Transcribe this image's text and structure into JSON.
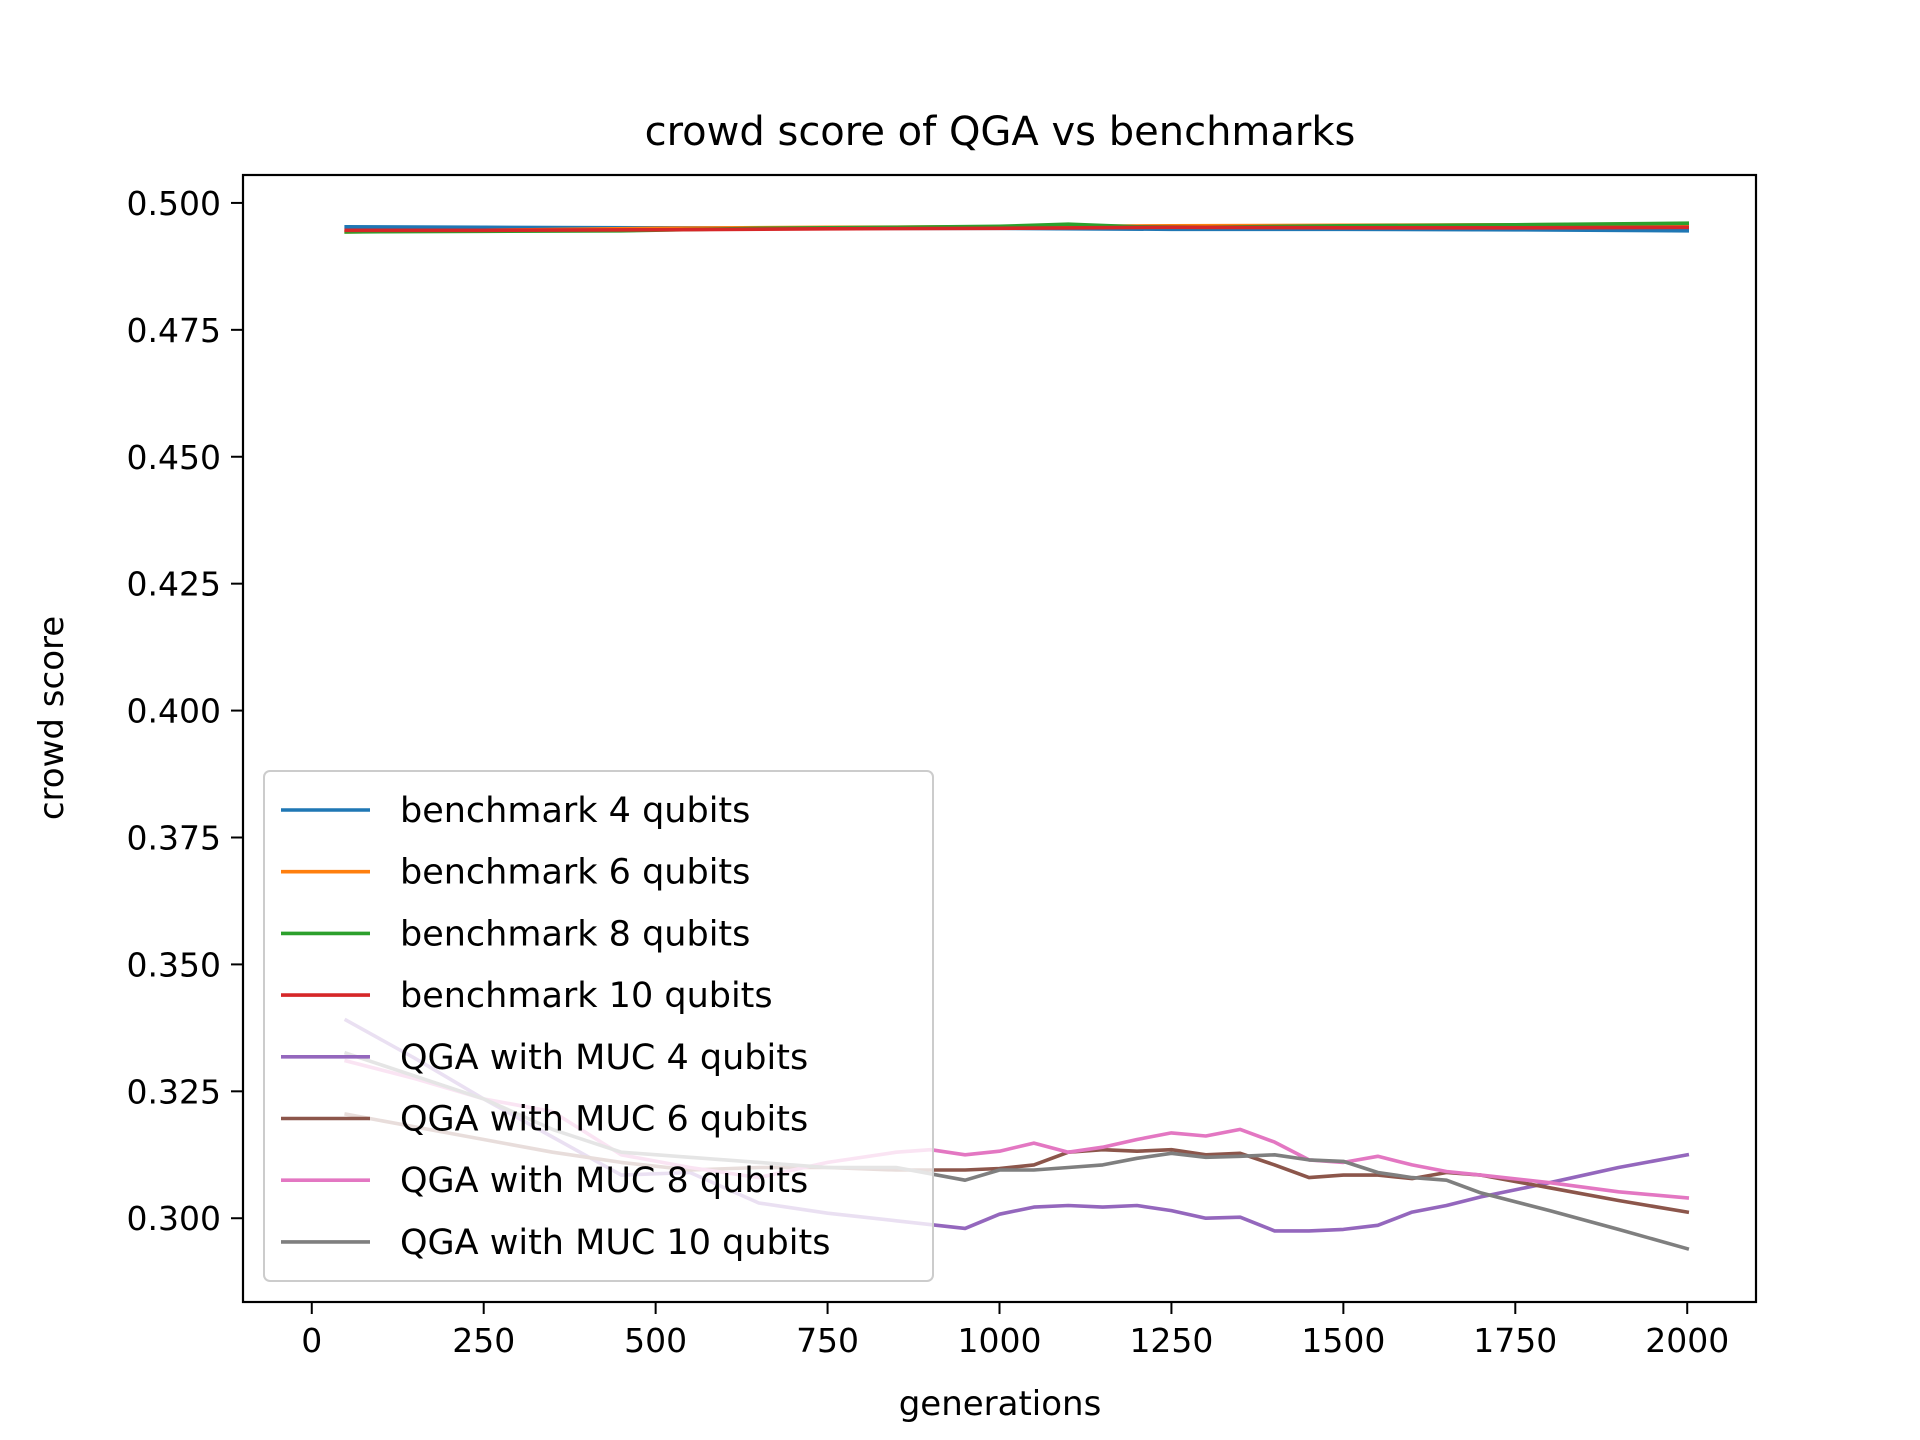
{
  "chart_data": {
    "type": "line",
    "title": "crowd score of QGA vs benchmarks",
    "xlabel": "generations",
    "ylabel": "crowd score",
    "xlim": [
      -100,
      2100
    ],
    "ylim": [
      0.2835,
      0.5055
    ],
    "xticks": [
      0,
      250,
      500,
      750,
      1000,
      1250,
      1500,
      1750,
      2000
    ],
    "xtick_labels": [
      "0",
      "250",
      "500",
      "750",
      "1000",
      "1250",
      "1500",
      "1750",
      "2000"
    ],
    "yticks": [
      0.3,
      0.325,
      0.35,
      0.375,
      0.4,
      0.425,
      0.45,
      0.475,
      0.5
    ],
    "ytick_labels": [
      "0.300",
      "0.325",
      "0.350",
      "0.375",
      "0.400",
      "0.425",
      "0.450",
      "0.475",
      "0.500"
    ],
    "grid": false,
    "legend_position": "lower-left",
    "series": [
      {
        "name": "benchmark 4 qubits",
        "color": "#1f77b4",
        "x": [
          50,
          250,
          500,
          750,
          1000,
          1250,
          1500,
          1750,
          2000
        ],
        "y": [
          0.4953,
          0.4952,
          0.4951,
          0.495,
          0.495,
          0.4948,
          0.4948,
          0.4947,
          0.4945
        ]
      },
      {
        "name": "benchmark 6 qubits",
        "color": "#ff7f0e",
        "x": [
          50,
          250,
          500,
          750,
          1000,
          1250,
          1500,
          1750,
          2000
        ],
        "y": [
          0.4943,
          0.4946,
          0.495,
          0.4952,
          0.4953,
          0.4955,
          0.4956,
          0.4957,
          0.4958
        ]
      },
      {
        "name": "benchmark 8 qubits",
        "color": "#2ca02c",
        "x": [
          50,
          250,
          450,
          650,
          850,
          1000,
          1100,
          1200,
          1300,
          1500,
          1750,
          2000
        ],
        "y": [
          0.4943,
          0.4944,
          0.4945,
          0.495,
          0.4952,
          0.4954,
          0.4958,
          0.4953,
          0.4952,
          0.4955,
          0.4957,
          0.496
        ]
      },
      {
        "name": "benchmark 10 qubits",
        "color": "#d62728",
        "x": [
          50,
          250,
          500,
          750,
          1000,
          1250,
          1500,
          1750,
          2000
        ],
        "y": [
          0.4946,
          0.4946,
          0.4947,
          0.4949,
          0.495,
          0.4952,
          0.4951,
          0.4951,
          0.4952
        ]
      },
      {
        "name": "QGA with MUC 4 qubits",
        "color": "#9467bd",
        "x": [
          50,
          150,
          250,
          350,
          450,
          550,
          650,
          750,
          850,
          950,
          1000,
          1050,
          1100,
          1150,
          1200,
          1250,
          1300,
          1350,
          1400,
          1450,
          1500,
          1550,
          1600,
          1650,
          1700,
          1800,
          1900,
          2000
        ],
        "y": [
          0.339,
          0.3315,
          0.3235,
          0.316,
          0.3085,
          0.309,
          0.303,
          0.301,
          0.2995,
          0.298,
          0.3008,
          0.3022,
          0.3025,
          0.3022,
          0.3025,
          0.3015,
          0.3,
          0.3002,
          0.2975,
          0.2975,
          0.2978,
          0.2986,
          0.3012,
          0.3025,
          0.3042,
          0.307,
          0.31,
          0.3125
        ]
      },
      {
        "name": "QGA with MUC 6 qubits",
        "color": "#8c564b",
        "x": [
          50,
          150,
          250,
          350,
          450,
          550,
          650,
          750,
          850,
          950,
          1000,
          1050,
          1100,
          1150,
          1200,
          1250,
          1300,
          1350,
          1400,
          1450,
          1500,
          1550,
          1600,
          1650,
          1700,
          1800,
          1900,
          2000
        ],
        "y": [
          0.3205,
          0.318,
          0.3155,
          0.313,
          0.311,
          0.3095,
          0.31,
          0.31,
          0.3095,
          0.3095,
          0.3098,
          0.3105,
          0.313,
          0.3135,
          0.3132,
          0.3135,
          0.3125,
          0.3128,
          0.3105,
          0.308,
          0.3085,
          0.3085,
          0.3078,
          0.309,
          0.3085,
          0.306,
          0.3035,
          0.3012
        ]
      },
      {
        "name": "QGA with MUC 8 qubits",
        "color": "#e377c2",
        "x": [
          50,
          150,
          250,
          350,
          450,
          550,
          650,
          750,
          850,
          900,
          950,
          1000,
          1050,
          1100,
          1150,
          1200,
          1250,
          1300,
          1350,
          1400,
          1450,
          1500,
          1550,
          1600,
          1650,
          1700,
          1800,
          1900,
          2000
        ],
        "y": [
          0.331,
          0.3275,
          0.3235,
          0.321,
          0.3125,
          0.31,
          0.308,
          0.311,
          0.313,
          0.3135,
          0.3125,
          0.3132,
          0.3148,
          0.313,
          0.314,
          0.3155,
          0.3168,
          0.3162,
          0.3175,
          0.315,
          0.3115,
          0.311,
          0.3122,
          0.3105,
          0.3092,
          0.3085,
          0.307,
          0.3052,
          0.304
        ]
      },
      {
        "name": "QGA with MUC 10 qubits",
        "color": "#7f7f7f",
        "x": [
          50,
          150,
          250,
          350,
          450,
          550,
          650,
          750,
          850,
          950,
          1000,
          1050,
          1100,
          1150,
          1200,
          1250,
          1300,
          1350,
          1400,
          1450,
          1500,
          1550,
          1600,
          1650,
          1700,
          1800,
          1900,
          2000
        ],
        "y": [
          0.3325,
          0.328,
          0.3235,
          0.3175,
          0.313,
          0.312,
          0.311,
          0.31,
          0.31,
          0.3075,
          0.3095,
          0.3095,
          0.31,
          0.3105,
          0.3118,
          0.3128,
          0.312,
          0.3122,
          0.3125,
          0.3115,
          0.3112,
          0.309,
          0.308,
          0.3075,
          0.305,
          0.3015,
          0.2978,
          0.294
        ]
      }
    ]
  }
}
